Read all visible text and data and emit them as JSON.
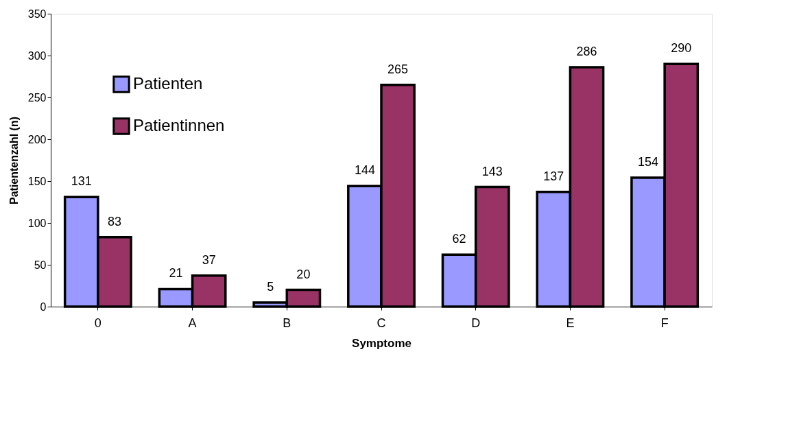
{
  "chart_data": {
    "type": "bar",
    "xlabel": "Symptome",
    "ylabel": "Patientenzahl (n)",
    "categories": [
      "0",
      "A",
      "B",
      "C",
      "D",
      "E",
      "F"
    ],
    "series": [
      {
        "name": "Patienten",
        "color": "#9999ff",
        "values": [
          131,
          21,
          5,
          144,
          62,
          137,
          154
        ]
      },
      {
        "name": "Patientinnen",
        "color": "#993366",
        "values": [
          83,
          37,
          20,
          265,
          143,
          286,
          290
        ]
      }
    ],
    "ylim": [
      0,
      350
    ],
    "yticks": [
      0,
      50,
      100,
      150,
      200,
      250,
      300,
      350
    ],
    "data_labels": true,
    "legend": "top left",
    "grid": false
  }
}
